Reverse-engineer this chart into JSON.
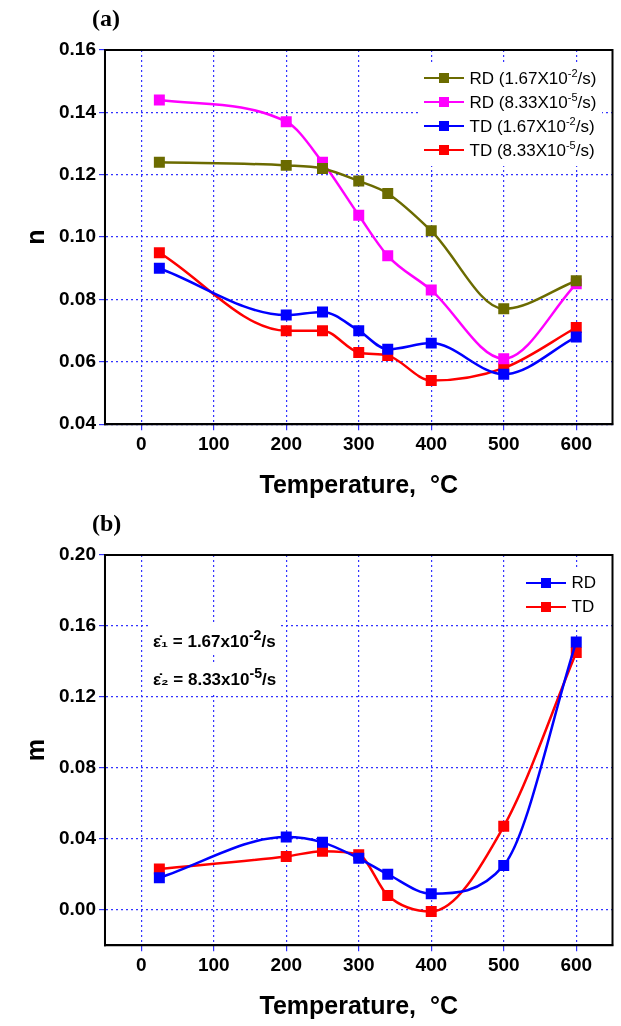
{
  "chart_data": [
    {
      "type": "line",
      "title": "(a)",
      "xlabel": "Temperature,  °C",
      "ylabel": "n",
      "x": [
        25,
        200,
        250,
        300,
        340,
        400,
        500,
        600
      ],
      "series": [
        {
          "name": "RD (1.67X10$^{-2}$/s)",
          "color": "#6b6b00",
          "values": [
            0.124,
            0.123,
            0.122,
            0.118,
            0.114,
            0.102,
            0.077,
            0.086
          ]
        },
        {
          "name": "RD (8.33X10$^{-5}$/s)",
          "color": "#ff00ff",
          "values": [
            0.144,
            0.137,
            0.124,
            0.107,
            0.094,
            0.083,
            0.061,
            0.085
          ]
        },
        {
          "name": "TD (1.67X10$^{-2}$/s)",
          "color": "#0000ff",
          "values": [
            0.09,
            0.075,
            0.076,
            0.07,
            0.064,
            0.066,
            0.056,
            0.068
          ]
        },
        {
          "name": "TD (8.33X10$^{-5}$/s)",
          "color": "#ff0000",
          "values": [
            0.095,
            0.07,
            0.07,
            0.063,
            0.062,
            0.054,
            0.058,
            0.071
          ]
        }
      ],
      "xlim": [
        -50,
        650
      ],
      "xticks": [
        0,
        100,
        200,
        300,
        400,
        500,
        600
      ],
      "ylim": [
        0.04,
        0.16
      ],
      "yticks": [
        {
          "value": 0.04,
          "label": "0.04"
        },
        {
          "value": 0.06,
          "label": "0.06"
        },
        {
          "value": 0.08,
          "label": "0.08"
        },
        {
          "value": 0.1,
          "label": "0.10"
        },
        {
          "value": 0.12,
          "label": "0.12"
        },
        {
          "value": 0.14,
          "label": "0.14"
        },
        {
          "value": 0.16,
          "label": "0.16"
        }
      ],
      "grid": true,
      "legend": "top right",
      "marker": "square",
      "line_style": "solid"
    },
    {
      "type": "line",
      "title": "(b)",
      "xlabel": "Temperature,  °C",
      "ylabel": "m",
      "x": [
        25,
        200,
        250,
        300,
        340,
        400,
        500,
        600
      ],
      "series": [
        {
          "name": "RD",
          "color": "#0000ff",
          "values": [
            0.018,
            0.041,
            0.038,
            0.029,
            0.02,
            0.009,
            0.025,
            0.151
          ]
        },
        {
          "name": "TD",
          "color": "#ff0000",
          "values": [
            0.023,
            0.03,
            0.033,
            0.031,
            0.008,
            -0.001,
            0.047,
            0.145
          ]
        }
      ],
      "annotations": [
        "ε̇₁ = 1.67x10$^{-2}$/s",
        "ε̇₂ = 8.33x10$^{-5}$/s"
      ],
      "xlim": [
        -50,
        650
      ],
      "xticks": [
        0,
        100,
        200,
        300,
        400,
        500,
        600
      ],
      "ylim": [
        -0.02,
        0.2
      ],
      "yticks": [
        {
          "value": 0,
          "label": "0.00"
        },
        {
          "value": 0.04,
          "label": "0.04"
        },
        {
          "value": 0.08,
          "label": "0.08"
        },
        {
          "value": 0.12,
          "label": "0.12"
        },
        {
          "value": 0.16,
          "label": "0.16"
        },
        {
          "value": 0.2,
          "label": "0.20"
        }
      ],
      "grid": true,
      "legend": "top right",
      "marker": "square",
      "line_style": "solid"
    }
  ]
}
